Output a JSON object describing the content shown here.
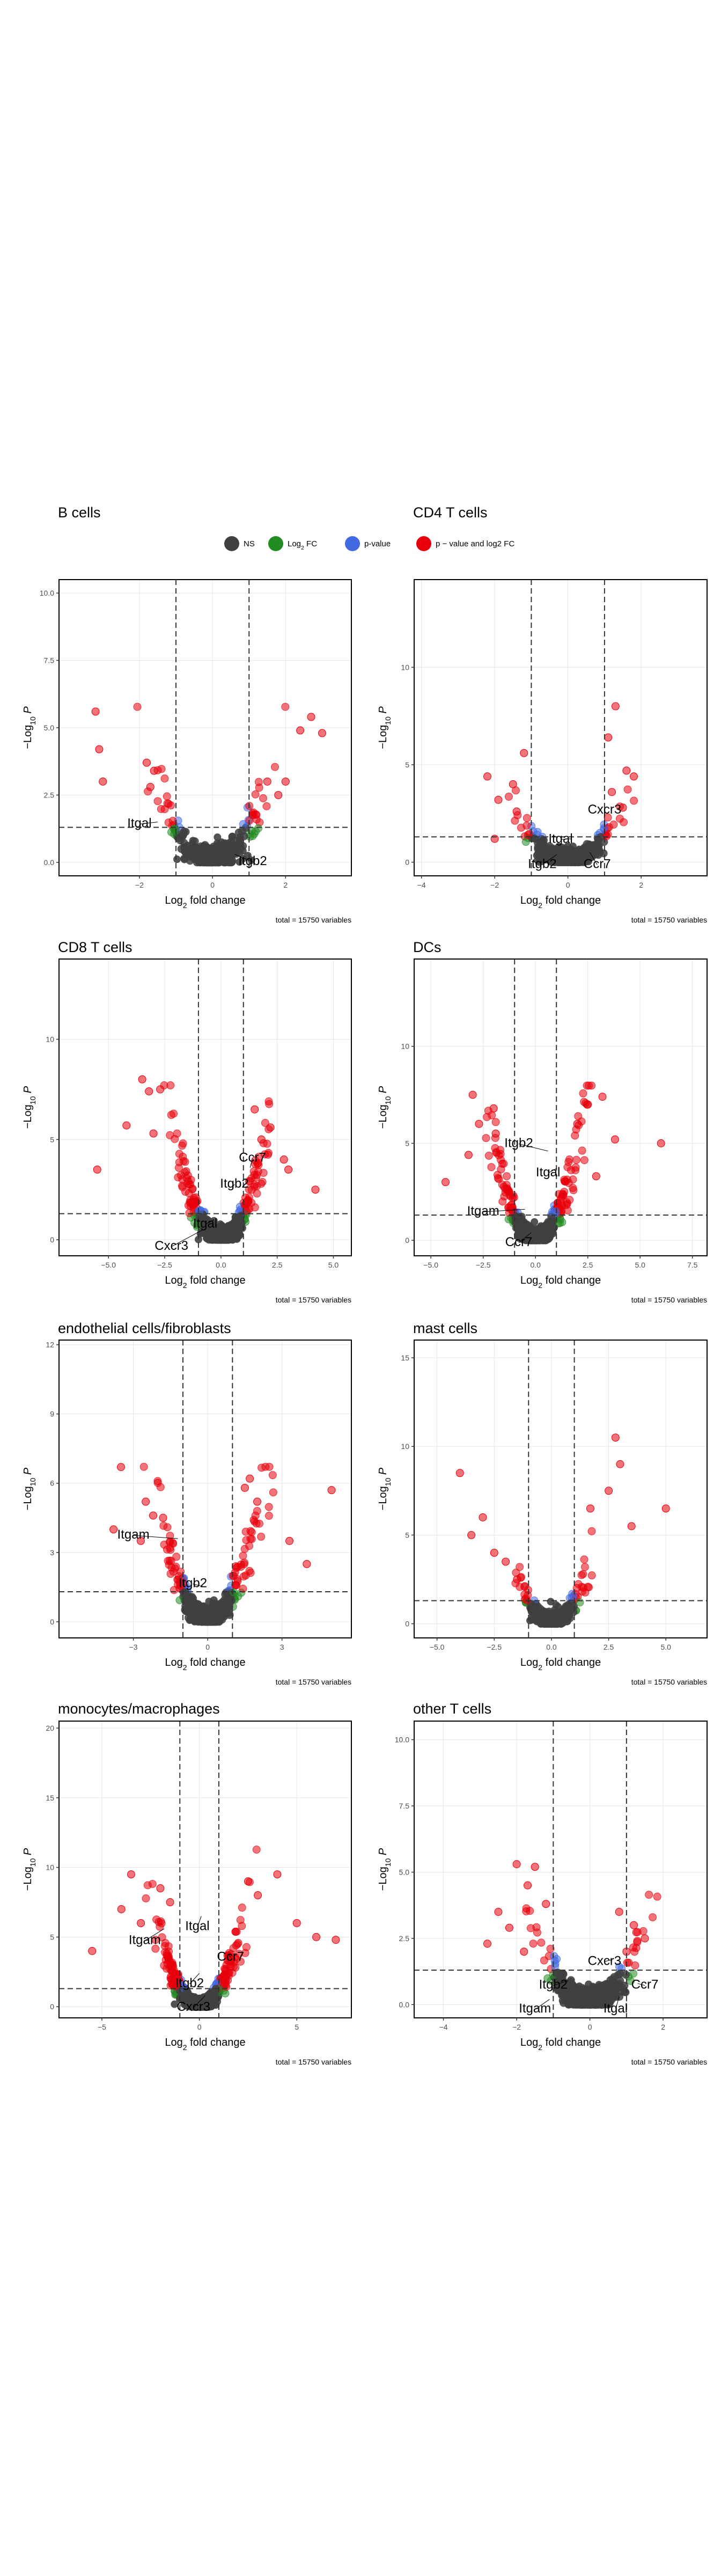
{
  "legend": {
    "items": [
      {
        "key": "NS",
        "label": "NS",
        "color": "#404040"
      },
      {
        "key": "FC",
        "label": "Log2 FC",
        "color": "#228b22"
      },
      {
        "key": "P",
        "label": "p-value",
        "color": "#4169e1"
      },
      {
        "key": "PFC",
        "label": "p − value and log2 FC",
        "color": "#e8000b"
      }
    ]
  },
  "xlabel": "Log2 fold change",
  "ylabel": "−Log10 P",
  "caption": "total = 15750 variables",
  "chart_data": [
    {
      "type": "scatter",
      "title": "B cells",
      "xlim": [
        -4.2,
        3.8
      ],
      "ylim": [
        -0.5,
        10.5
      ],
      "xticks": [
        -2,
        0,
        2
      ],
      "xtick_labels": [
        "−2",
        "0",
        "2"
      ],
      "yticks": [
        0,
        2.5,
        5,
        7.5,
        10
      ],
      "ytick_labels": [
        "0.0",
        "2.5",
        "5.0",
        "7.5",
        "10.0"
      ],
      "fc_cutoff": 1.0,
      "p_line": 1.3,
      "spread": 2.2,
      "n_base": 230,
      "red_points": [
        [
          -3.2,
          5.6
        ],
        [
          -3.1,
          4.2
        ],
        [
          -3.0,
          3.0
        ],
        [
          -1.8,
          3.7
        ],
        [
          -1.6,
          3.4
        ],
        [
          -1.7,
          2.8
        ],
        [
          2.0,
          3.0
        ],
        [
          2.4,
          4.9
        ],
        [
          2.7,
          5.4
        ],
        [
          3.0,
          4.8
        ],
        [
          1.5,
          3.0
        ],
        [
          1.8,
          2.5
        ]
      ],
      "genes": [
        {
          "name": "Itgal",
          "x": -1.5,
          "y": 1.5,
          "lx": -2.0,
          "ly": 1.3
        },
        {
          "name": "Itgb2",
          "x": 0.6,
          "y": 0.3,
          "lx": 1.1,
          "ly": -0.1
        }
      ]
    },
    {
      "type": "scatter",
      "title": "CD4 T cells",
      "xlim": [
        -4.2,
        3.8
      ],
      "ylim": [
        -0.7,
        14.5
      ],
      "xticks": [
        -4,
        -2,
        0,
        2
      ],
      "xtick_labels": [
        "−4",
        "−2",
        "0",
        "2"
      ],
      "yticks": [
        0,
        5,
        10
      ],
      "ytick_labels": [
        "0",
        "5",
        "10"
      ],
      "fc_cutoff": 1.0,
      "p_line": 1.3,
      "spread": 2.0,
      "n_base": 260,
      "red_points": [
        [
          -2.2,
          4.4
        ],
        [
          -1.5,
          4.0
        ],
        [
          -1.2,
          5.6
        ],
        [
          -1.9,
          3.2
        ],
        [
          -1.4,
          2.6
        ],
        [
          -2.0,
          1.2
        ],
        [
          1.1,
          6.4
        ],
        [
          1.3,
          8.0
        ],
        [
          1.6,
          4.7
        ],
        [
          1.8,
          4.4
        ],
        [
          1.2,
          3.6
        ],
        [
          1.5,
          2.8
        ]
      ],
      "genes": [
        {
          "name": "Cxcr3",
          "x": 1.0,
          "y": 1.8,
          "lx": 1.0,
          "ly": 2.5
        },
        {
          "name": "Itgal",
          "x": 0.1,
          "y": 1.2,
          "lx": -0.2,
          "ly": 1.0
        },
        {
          "name": "Itgb2",
          "x": -0.3,
          "y": 0.4,
          "lx": -0.7,
          "ly": -0.3
        },
        {
          "name": "Ccr7",
          "x": 0.6,
          "y": 0.5,
          "lx": 0.8,
          "ly": -0.3
        }
      ]
    },
    {
      "type": "scatter",
      "title": "CD8 T cells",
      "xlim": [
        -7.2,
        5.8
      ],
      "ylim": [
        -0.8,
        14.0
      ],
      "xticks": [
        -5,
        -2.5,
        0,
        2.5,
        5
      ],
      "xtick_labels": [
        "−5.0",
        "−2.5",
        "0.0",
        "2.5",
        "5.0"
      ],
      "yticks": [
        0,
        5,
        10
      ],
      "ytick_labels": [
        "0",
        "5",
        "10"
      ],
      "fc_cutoff": 1.0,
      "p_line": 1.3,
      "spread": 3.0,
      "n_base": 420,
      "red_points": [
        [
          -3.5,
          8.0
        ],
        [
          -3.2,
          7.4
        ],
        [
          -2.7,
          7.5
        ],
        [
          -5.5,
          3.5
        ],
        [
          -4.2,
          5.7
        ],
        [
          -3.0,
          5.3
        ],
        [
          2.2,
          5.6
        ],
        [
          1.8,
          5.0
        ],
        [
          2.8,
          4.0
        ],
        [
          3.0,
          3.5
        ],
        [
          4.2,
          2.5
        ],
        [
          1.5,
          6.5
        ]
      ],
      "genes": [
        {
          "name": "Ccr7",
          "x": 1.3,
          "y": 3.6,
          "lx": 1.4,
          "ly": 3.9
        },
        {
          "name": "Itgb2",
          "x": 0.5,
          "y": 2.6,
          "lx": 0.6,
          "ly": 2.6
        },
        {
          "name": "Itgal",
          "x": -0.3,
          "y": 1.0,
          "lx": -0.7,
          "ly": 0.6
        },
        {
          "name": "Cxcr3",
          "x": -0.8,
          "y": 0.5,
          "lx": -2.2,
          "ly": -0.5
        }
      ]
    },
    {
      "type": "scatter",
      "title": "DCs",
      "xlim": [
        -5.8,
        8.2
      ],
      "ylim": [
        -0.8,
        14.5
      ],
      "xticks": [
        -5,
        -2.5,
        0,
        2.5,
        5,
        7.5
      ],
      "xtick_labels": [
        "−5.0",
        "−2.5",
        "0.0",
        "2.5",
        "5.0",
        "7.5"
      ],
      "yticks": [
        0,
        5,
        10
      ],
      "ytick_labels": [
        "0",
        "5",
        "10"
      ],
      "fc_cutoff": 1.0,
      "p_line": 1.3,
      "spread": 3.0,
      "n_base": 420,
      "red_points": [
        [
          -3.0,
          7.5
        ],
        [
          -2.0,
          6.8
        ],
        [
          -2.7,
          6.0
        ],
        [
          -4.3,
          3.0
        ],
        [
          -1.9,
          5.5
        ],
        [
          -3.2,
          4.4
        ],
        [
          2.5,
          7.0
        ],
        [
          3.2,
          7.4
        ],
        [
          2.0,
          6.0
        ],
        [
          6.0,
          5.0
        ],
        [
          3.8,
          5.2
        ],
        [
          2.9,
          3.3
        ]
      ],
      "genes": [
        {
          "name": "Itgb2",
          "x": 0.6,
          "y": 4.6,
          "lx": -0.8,
          "ly": 4.8
        },
        {
          "name": "Itgal",
          "x": 1.0,
          "y": 3.7,
          "lx": 0.6,
          "ly": 3.3
        },
        {
          "name": "Itgam",
          "x": -0.5,
          "y": 1.6,
          "lx": -2.5,
          "ly": 1.3
        },
        {
          "name": "Ccr7",
          "x": -0.2,
          "y": 0.4,
          "lx": -0.8,
          "ly": -0.3
        }
      ]
    },
    {
      "type": "scatter",
      "title": "endothelial cells/fibroblasts",
      "xlim": [
        -6.0,
        5.8
      ],
      "ylim": [
        -0.7,
        12.2
      ],
      "xticks": [
        -3,
        0,
        3
      ],
      "xtick_labels": [
        "−3",
        "0",
        "3"
      ],
      "yticks": [
        0,
        3,
        6,
        9,
        12
      ],
      "ytick_labels": [
        "0",
        "3",
        "6",
        "9",
        "12"
      ],
      "fc_cutoff": 1.0,
      "p_line": 1.3,
      "spread": 2.8,
      "n_base": 380,
      "red_points": [
        [
          -3.5,
          6.7
        ],
        [
          -2.5,
          5.2
        ],
        [
          -2.2,
          4.6
        ],
        [
          -3.8,
          4.0
        ],
        [
          -1.8,
          4.5
        ],
        [
          -2.7,
          3.5
        ],
        [
          1.7,
          6.2
        ],
        [
          1.5,
          5.8
        ],
        [
          2.0,
          5.2
        ],
        [
          3.3,
          3.5
        ],
        [
          4.0,
          2.5
        ],
        [
          5.0,
          5.7
        ]
      ],
      "genes": [
        {
          "name": "Itgam",
          "x": -1.2,
          "y": 3.6,
          "lx": -3.0,
          "ly": 3.6
        },
        {
          "name": "Itgb2",
          "x": -0.1,
          "y": 1.5,
          "lx": -0.6,
          "ly": 1.5
        }
      ]
    },
    {
      "type": "scatter",
      "title": "mast cells",
      "xlim": [
        -6.0,
        6.8
      ],
      "ylim": [
        -0.8,
        16.0
      ],
      "xticks": [
        -5,
        -2.5,
        0,
        2.5,
        5
      ],
      "xtick_labels": [
        "−5.0",
        "−2.5",
        "0.0",
        "2.5",
        "5.0"
      ],
      "yticks": [
        0,
        5,
        10,
        15
      ],
      "ytick_labels": [
        "0",
        "5",
        "10",
        "15"
      ],
      "fc_cutoff": 1.0,
      "p_line": 1.3,
      "spread": 2.2,
      "n_base": 240,
      "red_points": [
        [
          -4.0,
          8.5
        ],
        [
          -3.0,
          6.0
        ],
        [
          -2.5,
          4.0
        ],
        [
          -2.0,
          3.5
        ],
        [
          -3.5,
          5.0
        ],
        [
          -1.5,
          2.5
        ],
        [
          2.8,
          10.5
        ],
        [
          3.0,
          9.0
        ],
        [
          2.5,
          7.5
        ],
        [
          1.7,
          6.5
        ],
        [
          5.0,
          6.5
        ],
        [
          3.5,
          5.5
        ]
      ],
      "genes": []
    },
    {
      "type": "scatter",
      "title": "monocytes/macrophages",
      "xlim": [
        -7.2,
        7.8
      ],
      "ylim": [
        -0.8,
        20.5
      ],
      "xticks": [
        -5,
        0,
        5
      ],
      "xtick_labels": [
        "−5",
        "0",
        "5"
      ],
      "yticks": [
        0,
        5,
        10,
        15,
        20
      ],
      "ytick_labels": [
        "0",
        "5",
        "10",
        "15",
        "20"
      ],
      "fc_cutoff": 1.0,
      "p_line": 1.3,
      "spread": 3.0,
      "n_base": 600,
      "red_points": [
        [
          -3.5,
          9.5
        ],
        [
          -2.0,
          8.5
        ],
        [
          -4.0,
          7.0
        ],
        [
          -5.5,
          4.0
        ],
        [
          -1.5,
          7.5
        ],
        [
          -3.0,
          6.0
        ],
        [
          4.0,
          9.5
        ],
        [
          2.5,
          9.0
        ],
        [
          3.0,
          8.0
        ],
        [
          6.0,
          5.0
        ],
        [
          7.0,
          4.8
        ],
        [
          5.0,
          6.0
        ]
      ],
      "genes": [
        {
          "name": "Itgam",
          "x": -1.8,
          "y": 5.6,
          "lx": -2.8,
          "ly": 4.5
        },
        {
          "name": "Itgal",
          "x": 0.1,
          "y": 6.5,
          "lx": -0.1,
          "ly": 5.5
        },
        {
          "name": "Ccr7",
          "x": 1.5,
          "y": 3.8,
          "lx": 1.6,
          "ly": 3.3
        },
        {
          "name": "Itgb2",
          "x": 0.0,
          "y": 2.4,
          "lx": -0.5,
          "ly": 1.4
        },
        {
          "name": "Cxcr3",
          "x": 0.3,
          "y": 0.8,
          "lx": -0.3,
          "ly": -0.3
        }
      ]
    },
    {
      "type": "scatter",
      "title": "other T cells",
      "xlim": [
        -4.8,
        3.2
      ],
      "ylim": [
        -0.5,
        10.7
      ],
      "xticks": [
        -4,
        -2,
        0,
        2
      ],
      "xtick_labels": [
        "−4",
        "−2",
        "0",
        "2"
      ],
      "yticks": [
        0,
        2.5,
        5,
        7.5,
        10
      ],
      "ytick_labels": [
        "0.0",
        "2.5",
        "5.0",
        "7.5",
        "10.0"
      ],
      "fc_cutoff": 1.0,
      "p_line": 1.3,
      "spread": 2.0,
      "n_base": 300,
      "red_points": [
        [
          -2.0,
          5.3
        ],
        [
          -1.5,
          5.2
        ],
        [
          -1.7,
          4.5
        ],
        [
          -2.5,
          3.5
        ],
        [
          -1.2,
          3.8
        ],
        [
          -2.8,
          2.3
        ],
        [
          0.8,
          3.5
        ],
        [
          1.2,
          3.0
        ],
        [
          1.5,
          2.5
        ],
        [
          1.0,
          2.0
        ],
        [
          -2.2,
          2.9
        ],
        [
          -1.8,
          2.0
        ]
      ],
      "genes": [
        {
          "name": "Cxcr3",
          "x": 0.6,
          "y": 1.7,
          "lx": 0.4,
          "ly": 1.5
        },
        {
          "name": "Itgb2",
          "x": -0.6,
          "y": 0.9,
          "lx": -1.0,
          "ly": 0.6
        },
        {
          "name": "Ccr7",
          "x": 1.3,
          "y": 0.8,
          "lx": 1.5,
          "ly": 0.6
        },
        {
          "name": "Itgam",
          "x": -1.1,
          "y": 0.2,
          "lx": -1.5,
          "ly": -0.3
        },
        {
          "name": "Itgal",
          "x": 0.8,
          "y": 0.3,
          "lx": 0.7,
          "ly": -0.3
        }
      ]
    }
  ]
}
